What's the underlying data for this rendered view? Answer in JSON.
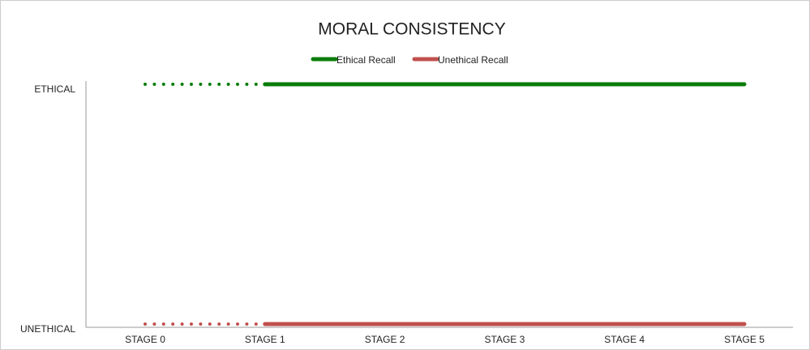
{
  "chart_data": {
    "type": "line",
    "title": "MORAL CONSISTENCY",
    "categories": [
      "STAGE 0",
      "STAGE 1",
      "STAGE 2",
      "STAGE 3",
      "STAGE 4",
      "STAGE 5"
    ],
    "series": [
      {
        "name": "Ethical Recall",
        "color": "#0a7d0a",
        "values": [
          1,
          1,
          1,
          1,
          1,
          1
        ],
        "dotted_to_index": 1
      },
      {
        "name": "Unethical Recall",
        "color": "#c0504d",
        "values": [
          0,
          0,
          0,
          0,
          0,
          0
        ],
        "dotted_to_index": 1
      }
    ],
    "ylim": [
      0,
      1
    ],
    "yticks": [
      {
        "value": 0,
        "label": "UNETHICAL"
      },
      {
        "value": 1,
        "label": "ETHICAL"
      }
    ],
    "grid": false,
    "legend": "top"
  }
}
